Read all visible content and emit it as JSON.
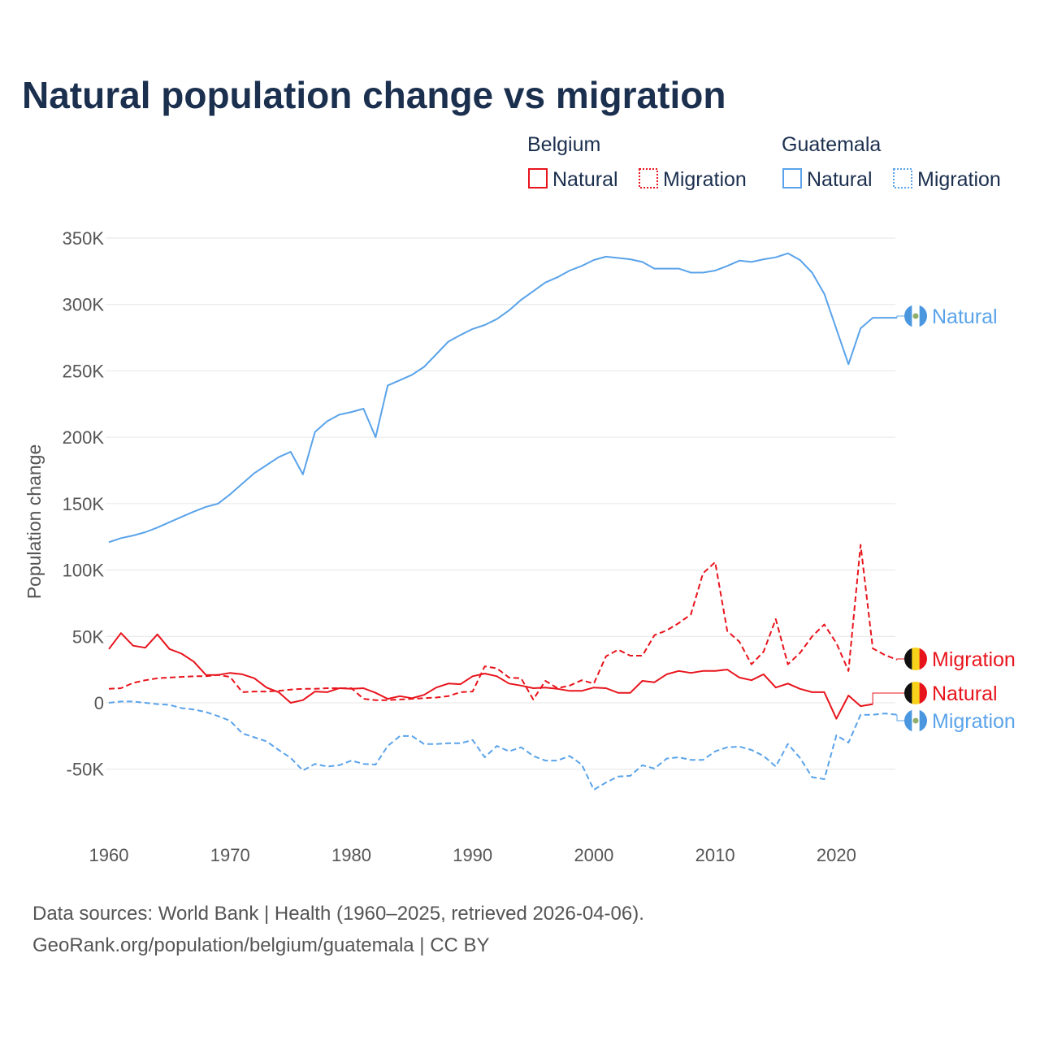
{
  "title": "Natural population change vs migration",
  "legend": {
    "groups": [
      {
        "name": "Belgium",
        "color": "#e8141c",
        "items": [
          "Natural",
          "Migration"
        ]
      },
      {
        "name": "Guatemala",
        "color": "#5aa3ea",
        "items": [
          "Natural",
          "Migration"
        ]
      }
    ]
  },
  "footer": {
    "line1": "Data sources: World Bank | Health (1960–2025, retrieved 2026-04-06).",
    "line2": "GeoRank.org/population/belgium/guatemala | CC BY"
  },
  "chart_data": {
    "type": "line",
    "title": "Natural population change vs migration",
    "xlabel": "",
    "ylabel": "Population change",
    "xlim": [
      1960,
      2025
    ],
    "ylim": [
      -50000,
      350000
    ],
    "x_ticks": [
      "1960",
      "1970",
      "1980",
      "1990",
      "2000",
      "2010",
      "2020"
    ],
    "y_ticks": [
      {
        "value": 350000,
        "label": "350K"
      },
      {
        "value": 300000,
        "label": "300K"
      },
      {
        "value": 250000,
        "label": "250K"
      },
      {
        "value": 200000,
        "label": "200K"
      },
      {
        "value": 150000,
        "label": "150K"
      },
      {
        "value": 100000,
        "label": "100K"
      },
      {
        "value": 50000,
        "label": "50K"
      },
      {
        "value": 0,
        "label": "0"
      },
      {
        "value": -50000,
        "label": "-50K"
      }
    ],
    "grid": true,
    "start_year": 1960,
    "series": [
      {
        "country": "Guatemala",
        "name": "Natural",
        "color": "#5aa3ea",
        "dash": "solid",
        "end_label": "Natural",
        "flag": "guatemala",
        "values": [
          121000,
          124000,
          126000,
          128500,
          132000,
          136000,
          140000,
          144000,
          147500,
          150000,
          157000,
          165000,
          173000,
          179000,
          185000,
          189000,
          172000,
          204000,
          212000,
          217000,
          219000,
          221500,
          200000,
          239000,
          243000,
          247000,
          253000,
          262500,
          272000,
          277000,
          281500,
          284500,
          289000,
          295500,
          303500,
          310000,
          316500,
          320500,
          325500,
          329000,
          333500,
          336000,
          335000,
          334000,
          332000,
          327000,
          327000,
          327000,
          324000,
          324000,
          325500,
          329000,
          333000,
          332000,
          334000,
          335500,
          338500,
          333500,
          324000,
          308000,
          281500,
          255000,
          282000,
          290000,
          290000,
          290000
        ]
      },
      {
        "country": "Guatemala",
        "name": "Migration",
        "color": "#5aa3ea",
        "dash": "dashed",
        "end_label": "Migration",
        "flag": "guatemala",
        "values": [
          0,
          1000,
          1000,
          0,
          -1000,
          -1500,
          -4000,
          -5000,
          -7000,
          -10000,
          -13500,
          -23000,
          -26000,
          -29000,
          -35500,
          -41500,
          -51000,
          -46000,
          -48000,
          -47000,
          -43500,
          -46000,
          -46500,
          -32500,
          -25000,
          -25000,
          -31000,
          -31000,
          -30500,
          -30500,
          -28000,
          -41000,
          -32500,
          -36500,
          -33500,
          -40000,
          -43500,
          -43500,
          -40000,
          -46500,
          -65500,
          -60000,
          -55500,
          -55000,
          -47000,
          -49500,
          -42000,
          -41000,
          -43000,
          -43000,
          -36500,
          -33500,
          -33000,
          -35500,
          -40000,
          -48000,
          -31000,
          -41500,
          -56000,
          -57500,
          -24500,
          -30000,
          -9000,
          -9000,
          -8000,
          -9000
        ]
      },
      {
        "country": "Belgium",
        "name": "Natural",
        "color": "#e8141c",
        "dash": "solid",
        "end_label": "Natural",
        "flag": "belgium",
        "values": [
          40500,
          52500,
          43000,
          41500,
          51500,
          40500,
          37000,
          31000,
          21000,
          21000,
          22500,
          21500,
          18500,
          11500,
          8000,
          0,
          2000,
          8500,
          8000,
          11000,
          10500,
          11000,
          7500,
          3000,
          5000,
          3500,
          6000,
          11500,
          14500,
          14000,
          20000,
          22000,
          20000,
          14500,
          13000,
          11000,
          11500,
          10500,
          9000,
          9000,
          11500,
          11000,
          7500,
          7500,
          16500,
          15500,
          21500,
          24000,
          22500,
          24000,
          24000,
          25000,
          19000,
          17000,
          21500,
          11500,
          14500,
          10500,
          8000,
          8000,
          -12000,
          5500,
          -2500,
          -1000
        ]
      },
      {
        "country": "Belgium",
        "name": "Migration",
        "color": "#e8141c",
        "dash": "dashed",
        "end_label": "Migration",
        "flag": "belgium",
        "values": [
          10500,
          11000,
          15000,
          17000,
          18500,
          19000,
          19500,
          20000,
          20000,
          21000,
          19500,
          8000,
          8500,
          8500,
          9000,
          10000,
          10500,
          10500,
          11000,
          11000,
          11000,
          3000,
          2000,
          2000,
          2500,
          3000,
          3500,
          4000,
          5000,
          8000,
          8500,
          27500,
          26000,
          19000,
          18500,
          2500,
          16500,
          11000,
          13000,
          17000,
          14500,
          35000,
          40000,
          35500,
          35500,
          51000,
          54500,
          60000,
          66500,
          97500,
          106000,
          54000,
          46000,
          29000,
          38500,
          63000,
          29000,
          37500,
          50000,
          59000,
          45000,
          24000,
          119000,
          41000,
          36000,
          32500
        ]
      }
    ]
  }
}
